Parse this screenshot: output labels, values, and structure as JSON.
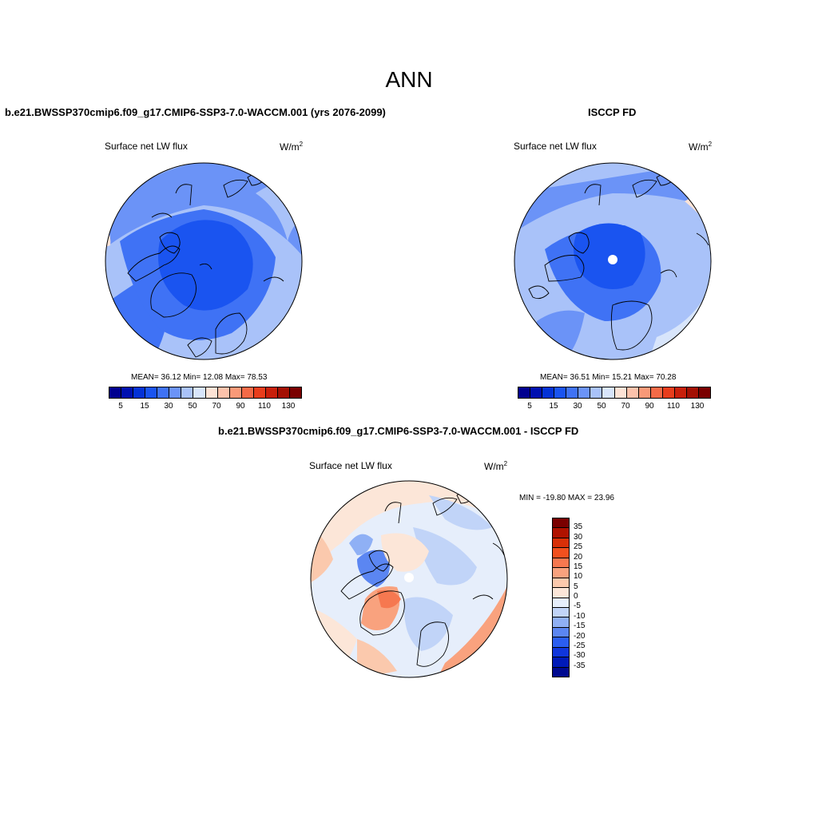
{
  "title": "ANN",
  "panels": {
    "model": {
      "title": "b.e21.BWSSP370cmip6.f09_g17.CMIP6-SSP3-7.0-WACCM.001 (yrs 2076-2099)",
      "var_label": "Surface net LW flux",
      "unit": "W/m",
      "unit_exp": "2",
      "stats": "MEAN=  36.12  Min=  12.08  Max=  78.53",
      "mean": 36.12,
      "min": 12.08,
      "max": 78.53
    },
    "obs": {
      "title": "ISCCP FD",
      "var_label": "Surface net LW flux",
      "unit": "W/m",
      "unit_exp": "2",
      "stats": "MEAN=  36.51  Min=  15.21  Max=  70.28",
      "mean": 36.51,
      "min": 15.21,
      "max": 70.28
    },
    "diff": {
      "title": "b.e21.BWSSP370cmip6.f09_g17.CMIP6-SSP3-7.0-WACCM.001 - ISCCP FD",
      "var_label": "Surface net LW flux",
      "unit": "W/m",
      "unit_exp": "2",
      "stats": "MIN = -19.80 MAX =  23.96",
      "min": -19.8,
      "max": 23.96
    }
  },
  "colorbar_abs": {
    "colors": [
      "#00008f",
      "#0010b0",
      "#0432d6",
      "#1a54f0",
      "#3f72f5",
      "#6b93f7",
      "#a9c2f9",
      "#d8e5fb",
      "#fde3d6",
      "#fcc2ab",
      "#f99978",
      "#f46a47",
      "#e83d1c",
      "#c81f0b",
      "#a30f03",
      "#7a0000"
    ],
    "tick_labels": [
      "5",
      "15",
      "30",
      "50",
      "70",
      "90",
      "110",
      "130"
    ]
  },
  "colorbar_diff": {
    "colors_top_to_bottom": [
      "#7a0000",
      "#b01200",
      "#d83008",
      "#f2501e",
      "#f67850",
      "#f9a27e",
      "#fbc9ad",
      "#fce6d8",
      "#e6eefb",
      "#c1d4f8",
      "#8fb0f5",
      "#5b86f2",
      "#2b5ef0",
      "#1036dc",
      "#001ab8",
      "#000a90"
    ],
    "tick_labels": [
      "35",
      "30",
      "25",
      "20",
      "15",
      "10",
      "5",
      "0",
      "-5",
      "-10",
      "-15",
      "-20",
      "-25",
      "-30",
      "-35"
    ]
  }
}
